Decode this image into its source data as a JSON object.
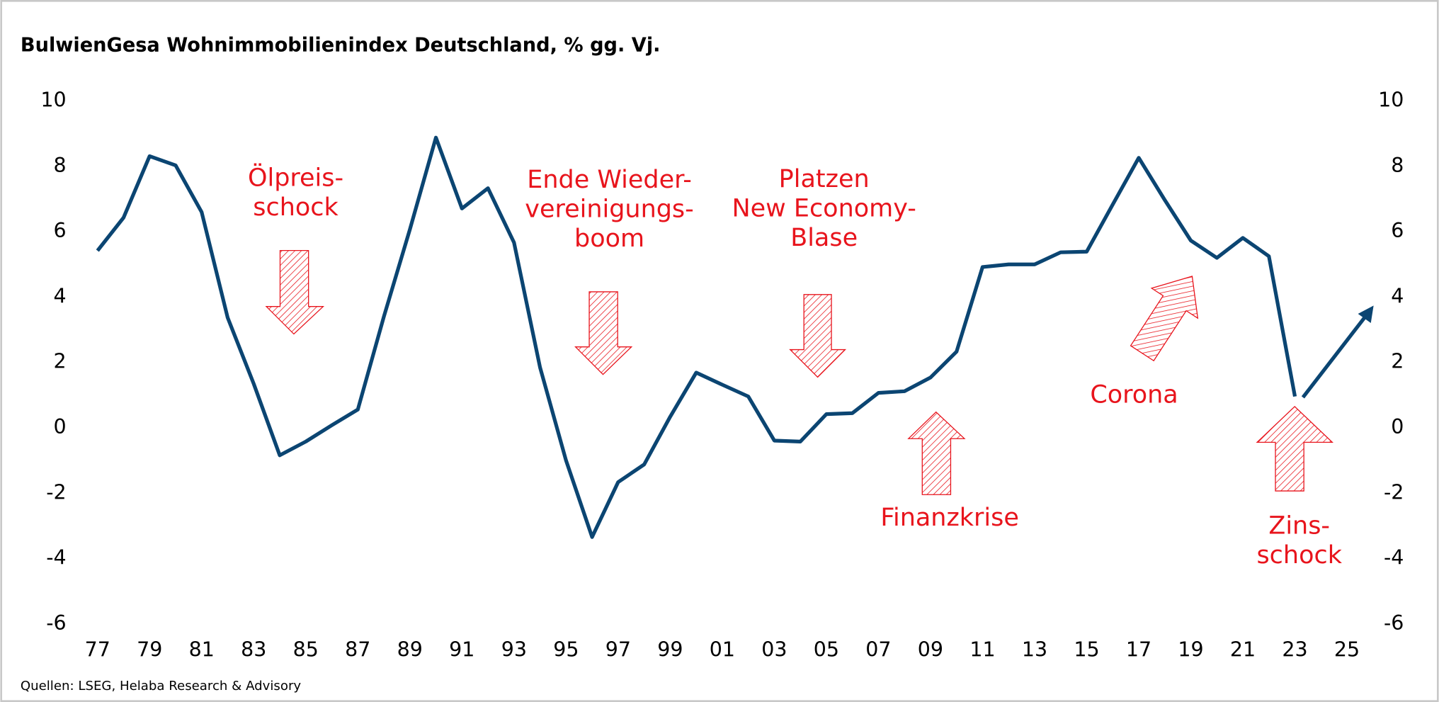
{
  "chart_data": {
    "type": "line",
    "title": "BulwienGesa Wohnimmobilienindex Deutschland, % gg. Vj.",
    "source": "Quellen: LSEG, Helaba Research & Advisory",
    "x": [
      1977,
      1978,
      1979,
      1980,
      1981,
      1982,
      1983,
      1984,
      1985,
      1986,
      1987,
      1988,
      1989,
      1990,
      1991,
      1992,
      1993,
      1994,
      1995,
      1996,
      1997,
      1998,
      1999,
      2000,
      2001,
      2002,
      2003,
      2004,
      2005,
      2006,
      2007,
      2008,
      2009,
      2010,
      2011,
      2012,
      2013,
      2014,
      2015,
      2016,
      2017,
      2018,
      2019,
      2020,
      2021,
      2022,
      2023
    ],
    "series": [
      {
        "name": "BulwienGesa Wohnimmobilienindex",
        "color": "#0b4572",
        "values": [
          5.42,
          6.43,
          8.31,
          8.03,
          6.6,
          3.37,
          1.35,
          -0.84,
          -0.42,
          0.08,
          0.56,
          3.4,
          6.07,
          8.88,
          6.71,
          7.33,
          5.67,
          1.85,
          -1.0,
          -3.34,
          -1.66,
          -1.12,
          0.34,
          1.69,
          1.32,
          0.96,
          -0.39,
          -0.42,
          0.42,
          0.45,
          1.07,
          1.12,
          1.54,
          2.33,
          4.92,
          5.0,
          5.0,
          5.37,
          5.39,
          6.83,
          8.26,
          6.97,
          5.73,
          5.2,
          5.81,
          5.25,
          0.96
        ]
      }
    ],
    "xlim": [
      1977,
      2025
    ],
    "xticks": [
      {
        "value": 1977,
        "label": "77"
      },
      {
        "value": 1979,
        "label": "79"
      },
      {
        "value": 1981,
        "label": "81"
      },
      {
        "value": 1983,
        "label": "83"
      },
      {
        "value": 1985,
        "label": "85"
      },
      {
        "value": 1987,
        "label": "87"
      },
      {
        "value": 1989,
        "label": "89"
      },
      {
        "value": 1991,
        "label": "91"
      },
      {
        "value": 1993,
        "label": "93"
      },
      {
        "value": 1995,
        "label": "95"
      },
      {
        "value": 1997,
        "label": "97"
      },
      {
        "value": 1999,
        "label": "99"
      },
      {
        "value": 2001,
        "label": "01"
      },
      {
        "value": 2003,
        "label": "03"
      },
      {
        "value": 2005,
        "label": "05"
      },
      {
        "value": 2007,
        "label": "07"
      },
      {
        "value": 2009,
        "label": "09"
      },
      {
        "value": 2011,
        "label": "11"
      },
      {
        "value": 2013,
        "label": "13"
      },
      {
        "value": 2015,
        "label": "15"
      },
      {
        "value": 2017,
        "label": "17"
      },
      {
        "value": 2019,
        "label": "19"
      },
      {
        "value": 2021,
        "label": "21"
      },
      {
        "value": 2023,
        "label": "23"
      },
      {
        "value": 2025,
        "label": "25"
      }
    ],
    "ylim": [
      -6,
      10
    ],
    "yticks": [
      -6,
      -4,
      -2,
      0,
      2,
      4,
      6,
      8,
      10
    ],
    "annotation_color": "#e8141c",
    "annotations": [
      {
        "lines": [
          "Ölpreis-",
          "schock"
        ]
      },
      {
        "lines": [
          "Ende Wieder-",
          "vereinigungs-",
          "boom"
        ]
      },
      {
        "lines": [
          "Platzen",
          "New Economy-",
          "Blase"
        ]
      },
      {
        "lines": [
          "Finanzkrise"
        ]
      },
      {
        "lines": [
          "Corona"
        ]
      },
      {
        "lines": [
          "Zins-",
          "schock"
        ]
      }
    ]
  }
}
